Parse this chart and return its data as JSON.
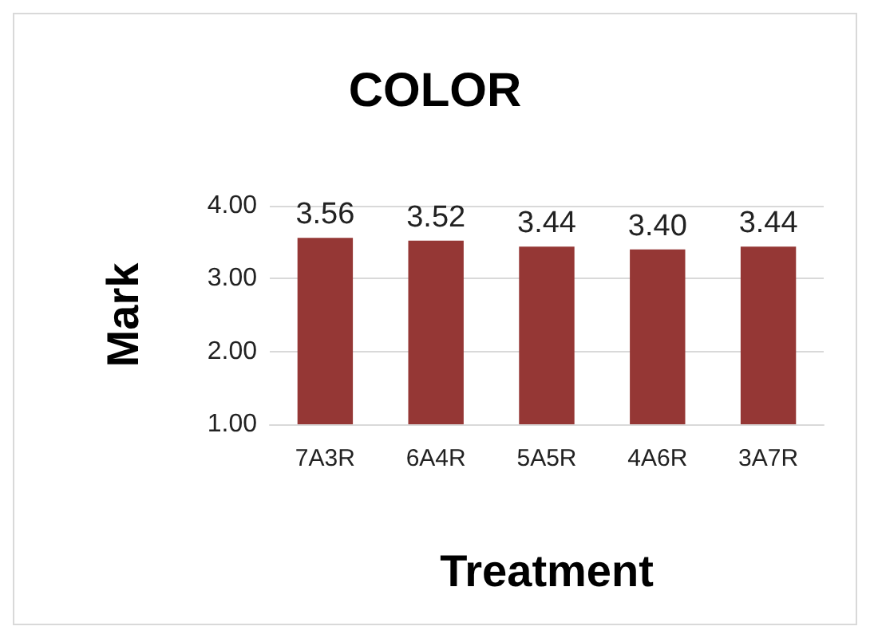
{
  "chart_data": {
    "type": "bar",
    "title": "COLOR",
    "xlabel": "Treatment",
    "ylabel": "Mark",
    "categories": [
      "7A3R",
      "6A4R",
      "5A5R",
      "4A6R",
      "3A7R"
    ],
    "values": [
      3.56,
      3.52,
      3.44,
      3.4,
      3.44
    ],
    "value_labels": [
      "3.56",
      "3.52",
      "3.44",
      "3.40",
      "3.44"
    ],
    "color": "#953735",
    "ylim": [
      1,
      4
    ],
    "yticks": [
      {
        "value": 1,
        "label": "1.00"
      },
      {
        "value": 2,
        "label": "2.00"
      },
      {
        "value": 3,
        "label": "3.00"
      },
      {
        "value": 4,
        "label": "4.00"
      }
    ],
    "grid": "y"
  }
}
